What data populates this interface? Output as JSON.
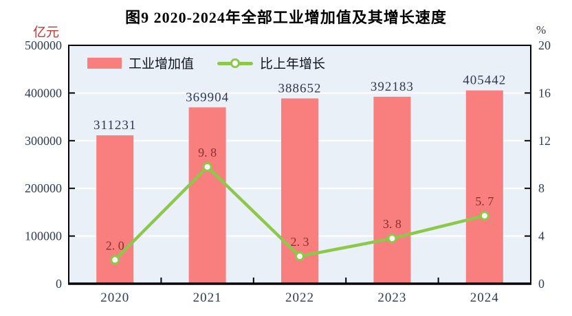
{
  "title": "图9  2020-2024年全部工业增加值及其增长速度",
  "legend": [
    {
      "label": "工业增加值",
      "type": "bar"
    },
    {
      "label": "比上年增长",
      "type": "line"
    }
  ],
  "colors": {
    "bar": "#F97E7E",
    "line": "#8DC84B",
    "marker_fill": "#FFFFFF",
    "plot_bg": "#E9F0F7",
    "grid": "#FFFFFF",
    "axis": "#000000",
    "value_label": "#2F3A52",
    "tick_label": "#2F3A52",
    "growth_label": "#8B2F2F",
    "left_unit": "#BE3B35",
    "right_unit": "#33333F"
  },
  "chart_data": {
    "type": "bar+line",
    "title": "图9  2020-2024年全部工业增加值及其增长速度",
    "categories": [
      "2020",
      "2021",
      "2022",
      "2023",
      "2024"
    ],
    "series": [
      {
        "name": "工业增加值",
        "type": "bar",
        "axis": "left",
        "unit": "亿元",
        "values": [
          311231,
          369904,
          388652,
          392183,
          405442
        ],
        "labels": [
          "311231",
          "369904",
          "388652",
          "392183",
          "405442"
        ]
      },
      {
        "name": "比上年增长",
        "type": "line",
        "axis": "right",
        "unit": "%",
        "values": [
          2.0,
          9.8,
          2.3,
          3.8,
          5.7
        ],
        "labels": [
          "2. 0",
          "9. 8",
          "2. 3",
          "3. 8",
          "5. 7"
        ]
      }
    ],
    "left_axis": {
      "unit": "亿元",
      "min": 0,
      "max": 500000,
      "ticks": [
        0,
        100000,
        200000,
        300000,
        400000,
        500000
      ],
      "tick_labels": [
        "0",
        "100000",
        "200000",
        "300000",
        "400000",
        "500000"
      ]
    },
    "right_axis": {
      "unit": "%",
      "min": 0,
      "max": 20,
      "ticks": [
        0,
        4,
        8,
        12,
        16,
        20
      ],
      "tick_labels": [
        "0",
        "4",
        "8",
        "12",
        "16",
        "20"
      ]
    },
    "grid": true,
    "legend_position": "top-left-inside"
  }
}
